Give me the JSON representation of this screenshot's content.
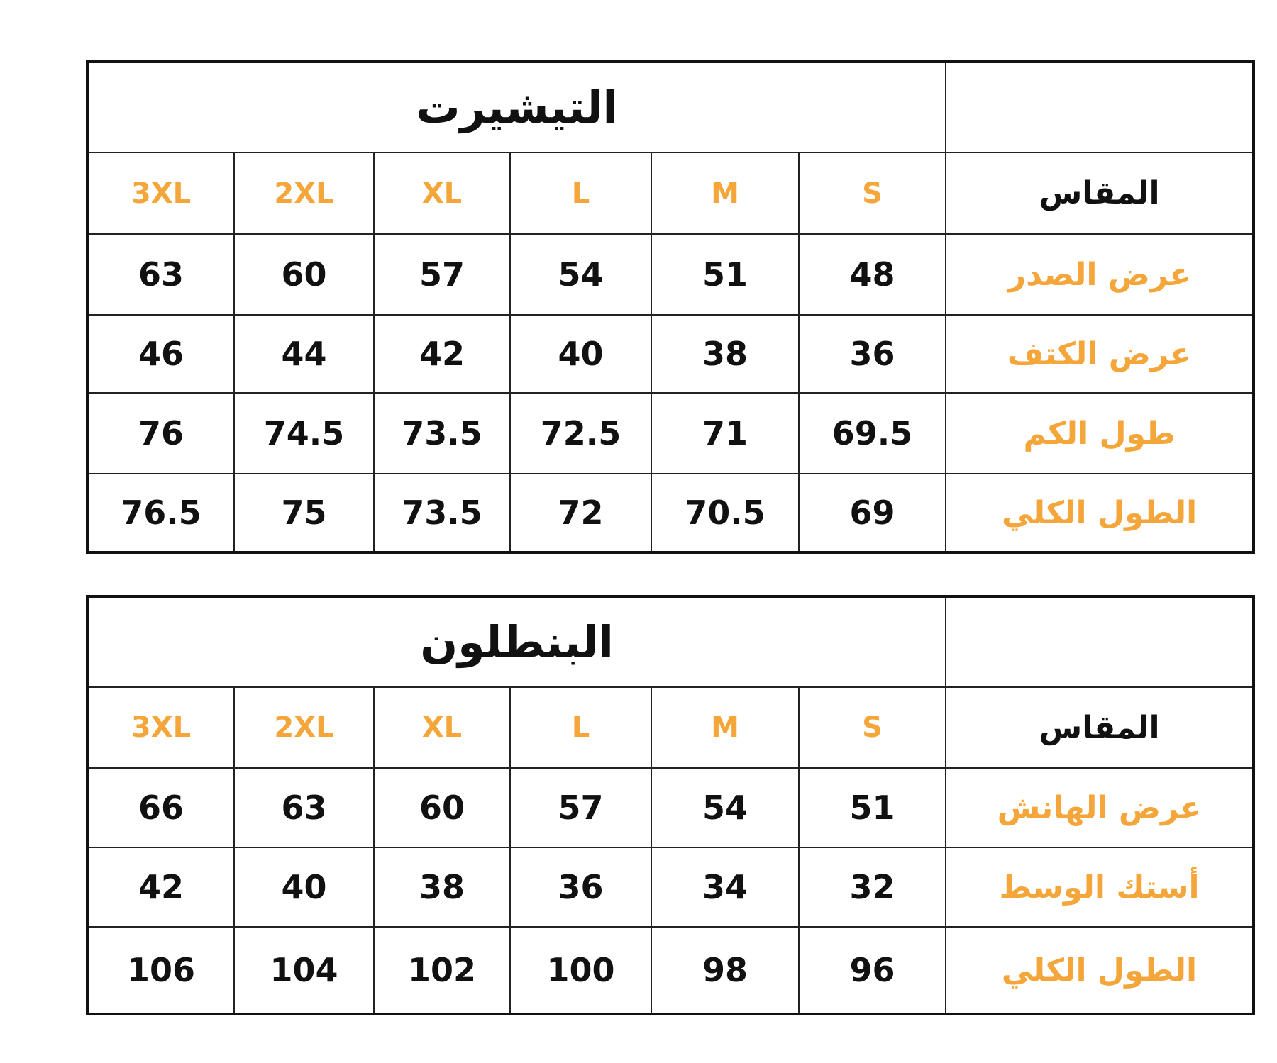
{
  "colors": {
    "accent": "#F5A63B",
    "text": "#111111"
  },
  "tables": [
    {
      "title": "التيشيرت",
      "header_label": "المقاس",
      "sizes": [
        "S",
        "M",
        "L",
        "XL",
        "2XL",
        "3XL"
      ],
      "rows": [
        {
          "label": "عرض الصدر",
          "values": [
            "48",
            "51",
            "54",
            "57",
            "60",
            "63"
          ]
        },
        {
          "label": "عرض الكتف",
          "values": [
            "36",
            "38",
            "40",
            "42",
            "44",
            "46"
          ]
        },
        {
          "label": "طول الكم",
          "values": [
            "69.5",
            "71",
            "72.5",
            "73.5",
            "74.5",
            "76"
          ]
        },
        {
          "label": "الطول الكلي",
          "values": [
            "69",
            "70.5",
            "72",
            "73.5",
            "75",
            "76.5"
          ]
        }
      ]
    },
    {
      "title": "البنطلون",
      "header_label": "المقاس",
      "sizes": [
        "S",
        "M",
        "L",
        "XL",
        "2XL",
        "3XL"
      ],
      "rows": [
        {
          "label": "عرض الهانش",
          "values": [
            "51",
            "54",
            "57",
            "60",
            "63",
            "66"
          ]
        },
        {
          "label": "أستك الوسط",
          "values": [
            "32",
            "34",
            "36",
            "38",
            "40",
            "42"
          ]
        },
        {
          "label": "الطول الكلي",
          "values": [
            "96",
            "98",
            "100",
            "102",
            "104",
            "106"
          ]
        }
      ]
    }
  ]
}
